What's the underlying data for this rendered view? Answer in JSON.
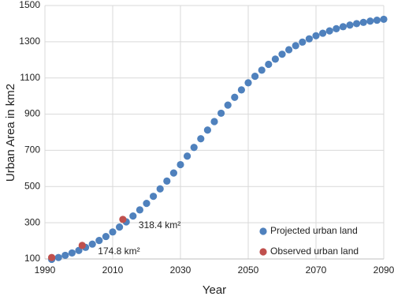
{
  "chart_data": {
    "type": "scatter",
    "x_label": "Year",
    "y_label": "Urban Area in km2",
    "xlim": [
      1990,
      2090
    ],
    "xticks": [
      1990,
      2010,
      2030,
      2050,
      2070,
      2090
    ],
    "ylim": [
      100,
      1500
    ],
    "yticks": [
      100,
      300,
      500,
      700,
      900,
      1100,
      1300,
      1500
    ],
    "grid": true,
    "legend": "lower right",
    "series": [
      {
        "name": "Projected urban land",
        "color": "#4f81bd",
        "x": [
          1992,
          1994,
          1996,
          1998,
          2000,
          2002,
          2004,
          2006,
          2008,
          2010,
          2012,
          2014,
          2016,
          2018,
          2020,
          2022,
          2024,
          2026,
          2028,
          2030,
          2032,
          2034,
          2036,
          2038,
          2040,
          2042,
          2044,
          2046,
          2048,
          2050,
          2052,
          2054,
          2056,
          2058,
          2060,
          2062,
          2064,
          2066,
          2068,
          2070,
          2072,
          2074,
          2076,
          2078,
          2080,
          2082,
          2084,
          2086,
          2088,
          2090
        ],
        "values": [
          98,
          108,
          120,
          133,
          147,
          164,
          182,
          202,
          224,
          249,
          276,
          305,
          337,
          371,
          407,
          446,
          487,
          530,
          575,
          621,
          668,
          716,
          764,
          812,
          859,
          905,
          950,
          993,
          1034,
          1073,
          1109,
          1143,
          1175,
          1204,
          1231,
          1256,
          1278,
          1298,
          1316,
          1333,
          1347,
          1360,
          1372,
          1383,
          1392,
          1400,
          1407,
          1414,
          1419,
          1424
        ]
      },
      {
        "name": "Observed urban land",
        "color": "#c0504d",
        "x": [
          1992,
          2001,
          2013
        ],
        "values": [
          108,
          174.8,
          318.4
        ],
        "value_labels": [
          null,
          "174.8 km²",
          "318.4 km²"
        ]
      }
    ]
  }
}
